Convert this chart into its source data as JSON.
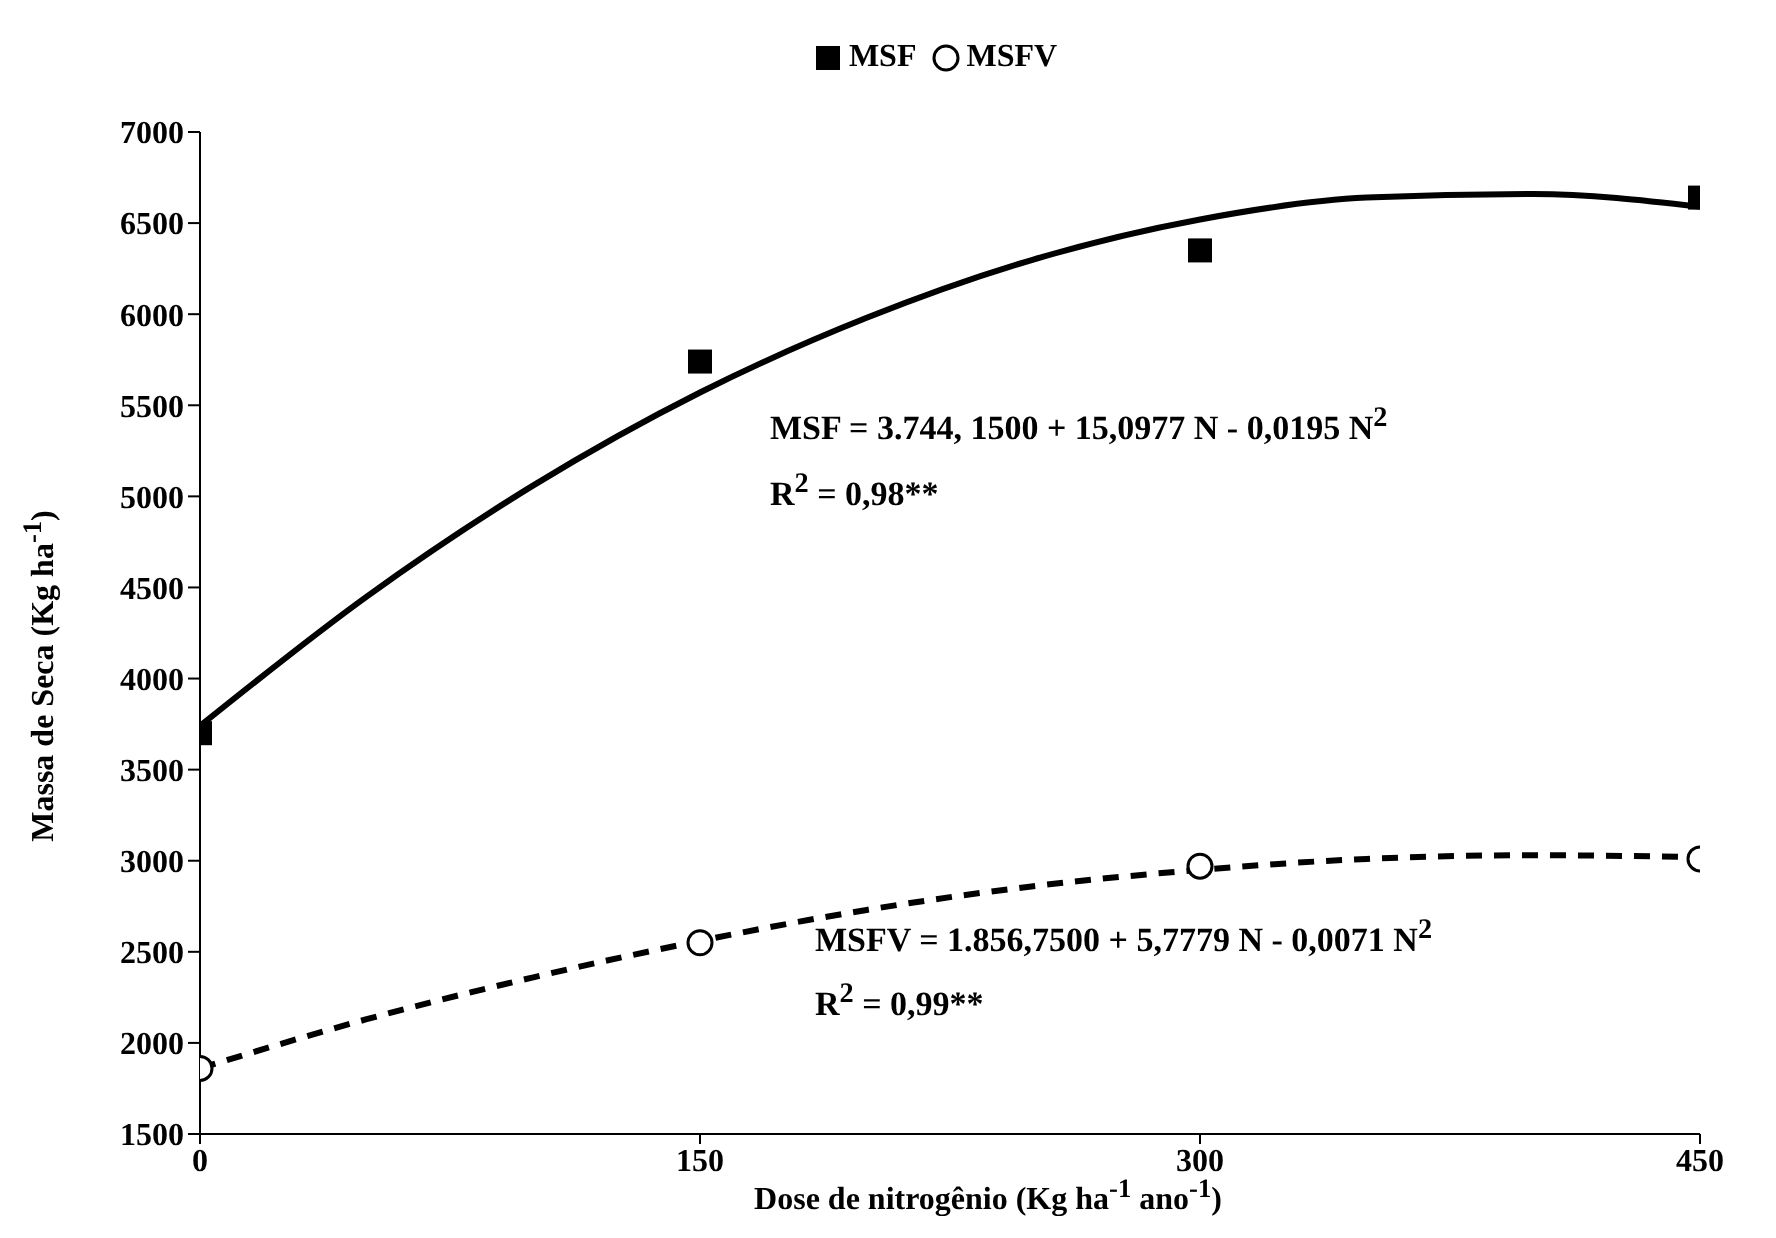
{
  "chart_data": {
    "type": "scatter",
    "xlabel": "Dose de nitrogênio (Kg ha$^{-1}$ ano$^{-1}$)",
    "ylabel": "Massa de Seca (Kg ha$^{-1}$)",
    "xlim": [
      0,
      450
    ],
    "xticks": [
      0,
      150,
      300,
      450
    ],
    "ylim": [
      1500,
      7000
    ],
    "yticks": [
      1500,
      2000,
      2500,
      3000,
      3500,
      4000,
      4500,
      5000,
      5500,
      6000,
      6500,
      7000
    ],
    "grid": false,
    "legend": "top",
    "annotations": [
      "MSF = 3.744, 1500 + 15,0977 N - 0,0195 N$^{2}$",
      "R$^{2}$ = 0,98**",
      "MSFV = 1.856,7500 + 5,7779 N - 0,0071 N$^{2}$",
      "R$^{2}$ = 0,99**"
    ],
    "series": [
      {
        "type": "line",
        "color": "#000000",
        "line_style": "solid",
        "marker": "none",
        "x": [
          0,
          50,
          100,
          150,
          200,
          250,
          300,
          350,
          400,
          450
        ],
        "values": [
          3740,
          4450,
          5060,
          5570,
          5980,
          6300,
          6520,
          6640,
          6660,
          6590
        ]
      },
      {
        "type": "line",
        "color": "#000000",
        "line_style": "dashed",
        "marker": "none",
        "x": [
          0,
          50,
          100,
          150,
          200,
          250,
          300,
          350,
          400,
          450
        ],
        "values": [
          1860,
          2130,
          2360,
          2560,
          2730,
          2860,
          2950,
          3010,
          3030,
          3020
        ]
      },
      {
        "name": "MSF",
        "color": "#000000",
        "marker": "square",
        "x": [
          0,
          150,
          300,
          450
        ],
        "values": [
          3700,
          5740,
          6350,
          6640
        ]
      },
      {
        "name": "MSFV",
        "color": "#000000",
        "marker": "circle",
        "x": [
          0,
          150,
          300,
          450
        ],
        "values": [
          1860,
          2550,
          2970,
          3010
        ]
      }
    ]
  }
}
